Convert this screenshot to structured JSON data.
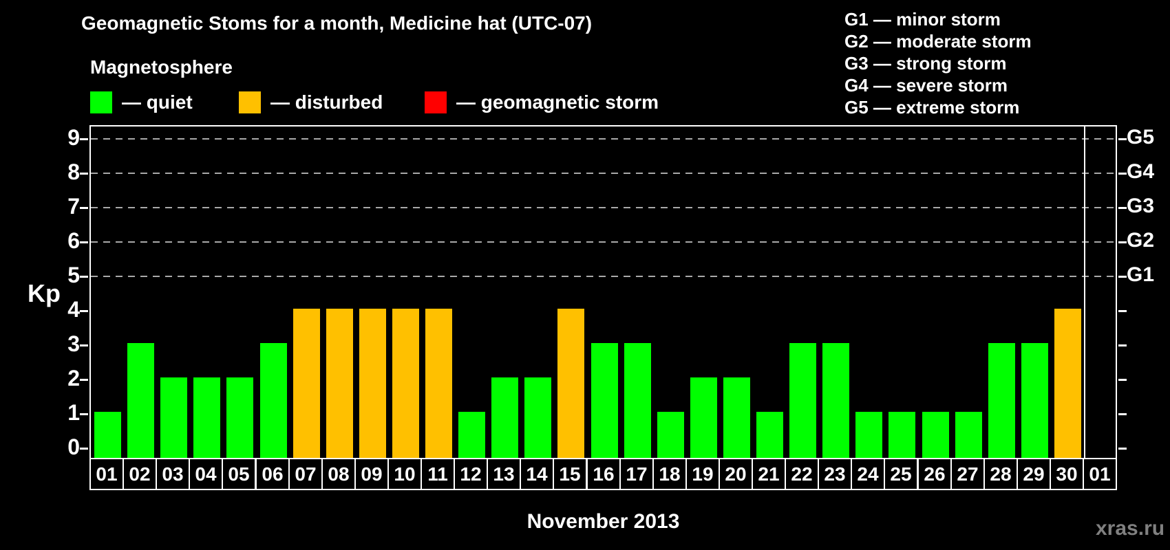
{
  "title": "Geomagnetic Stoms for a month, Medicine hat (UTC-07)",
  "watermark": "xras.ru",
  "legend": {
    "heading": "Magnetosphere",
    "items": [
      {
        "name": "quiet",
        "label": "— quiet",
        "color": "#00ff00"
      },
      {
        "name": "disturbed",
        "label": "— disturbed",
        "color": "#ffc000"
      },
      {
        "name": "geomagnetic-storm",
        "label": "— geomagnetic storm",
        "color": "#ff0000"
      }
    ]
  },
  "storm_scale_legend": [
    "G1 — minor storm",
    "G2 — moderate storm",
    "G3 — strong storm",
    "G4 — severe storm",
    "G5 — extreme storm"
  ],
  "chart_data": {
    "type": "bar",
    "title": "Geomagnetic Stoms for a month, Medicine hat (UTC-07)",
    "xlabel": "November 2013",
    "ylabel": "Kp",
    "ylim": [
      0,
      9
    ],
    "yticks": [
      0,
      1,
      2,
      3,
      4,
      5,
      6,
      7,
      8,
      9
    ],
    "grid": "dashed horizontal lines at Kp 5,6,7,8,9",
    "legend_position": "top",
    "right_axis_labels": [
      {
        "label": "G1",
        "kp": 5
      },
      {
        "label": "G2",
        "kp": 6
      },
      {
        "label": "G3",
        "kp": 7
      },
      {
        "label": "G4",
        "kp": 8
      },
      {
        "label": "G5",
        "kp": 9
      }
    ],
    "categories": [
      "01",
      "02",
      "03",
      "04",
      "05",
      "06",
      "07",
      "08",
      "09",
      "10",
      "11",
      "12",
      "13",
      "14",
      "15",
      "16",
      "17",
      "18",
      "19",
      "20",
      "21",
      "22",
      "23",
      "24",
      "25",
      "26",
      "27",
      "28",
      "29",
      "30",
      "01"
    ],
    "values": [
      1,
      3,
      2,
      2,
      2,
      3,
      4,
      4,
      4,
      4,
      4,
      1,
      2,
      2,
      4,
      3,
      3,
      1,
      2,
      2,
      1,
      3,
      3,
      1,
      1,
      1,
      1,
      3,
      3,
      4,
      null
    ],
    "statuses": [
      "quiet",
      "quiet",
      "quiet",
      "quiet",
      "quiet",
      "quiet",
      "disturbed",
      "disturbed",
      "disturbed",
      "disturbed",
      "disturbed",
      "quiet",
      "quiet",
      "quiet",
      "disturbed",
      "quiet",
      "quiet",
      "quiet",
      "quiet",
      "quiet",
      "quiet",
      "quiet",
      "quiet",
      "quiet",
      "quiet",
      "quiet",
      "quiet",
      "quiet",
      "quiet",
      "disturbed",
      null
    ],
    "status_colors": {
      "quiet": "#00ff00",
      "disturbed": "#ffc000",
      "geomagnetic storm": "#ff0000"
    },
    "month_boundary_after_index": 29
  }
}
